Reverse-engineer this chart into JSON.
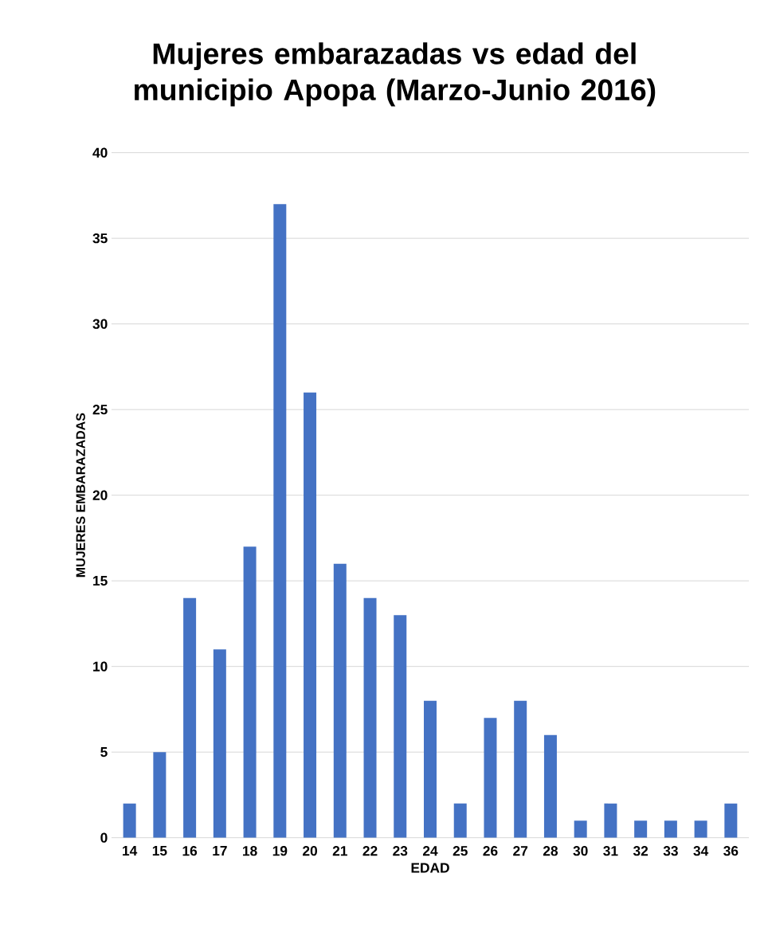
{
  "chart_data": {
    "type": "bar",
    "title": "Mujeres embarazadas vs edad del municipio Apopa (Marzo-Junio 2016)",
    "xlabel": "EDAD",
    "ylabel": "MUJERES EMBARAZADAS",
    "categories": [
      "14",
      "15",
      "16",
      "17",
      "18",
      "19",
      "20",
      "21",
      "22",
      "23",
      "24",
      "25",
      "26",
      "27",
      "28",
      "30",
      "31",
      "32",
      "33",
      "34",
      "36"
    ],
    "values": [
      2,
      5,
      14,
      11,
      17,
      37,
      26,
      16,
      14,
      13,
      8,
      2,
      7,
      8,
      6,
      1,
      2,
      1,
      1,
      1,
      2
    ],
    "color": "#4472c4",
    "ylim": [
      0,
      40
    ],
    "yticks": [
      0,
      5,
      10,
      15,
      20,
      25,
      30,
      35,
      40
    ],
    "grid": "y"
  }
}
